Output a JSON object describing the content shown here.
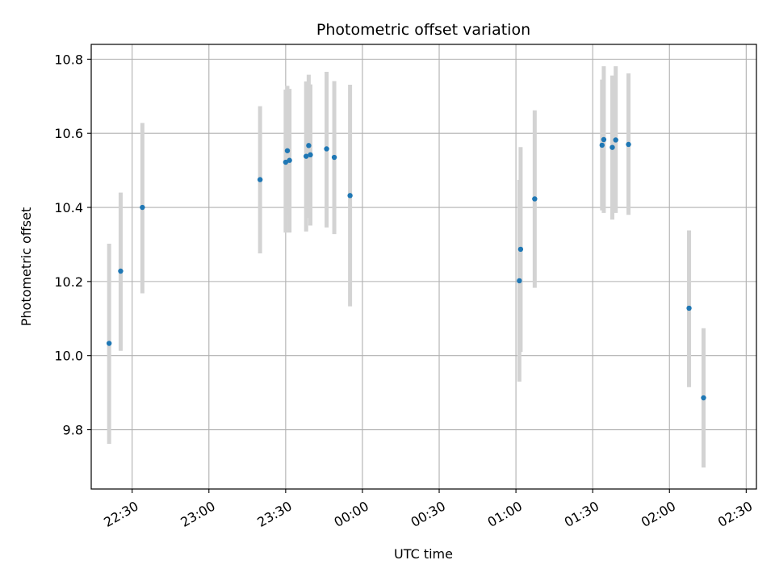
{
  "chart_data": {
    "type": "scatter",
    "title": "Photometric offset variation",
    "xlabel": "UTC time",
    "ylabel": "Photometric offset",
    "xlim": [
      "22:14",
      "02:34"
    ],
    "ylim": [
      9.64,
      10.84
    ],
    "x_ticks": [
      "22:30",
      "23:00",
      "23:30",
      "00:00",
      "00:30",
      "01:00",
      "01:30",
      "02:00",
      "02:30"
    ],
    "y_ticks": [
      9.8,
      10.0,
      10.2,
      10.4,
      10.6,
      10.8
    ],
    "grid": true,
    "colors": {
      "point": "#1f77b4",
      "errorbar": "#d3d3d3",
      "grid": "#b0b0b0"
    },
    "points": [
      {
        "time": "22:21:00",
        "y": 10.033,
        "err_low": 9.762,
        "err_high": 10.302
      },
      {
        "time": "22:25:30",
        "y": 10.228,
        "err_low": 10.013,
        "err_high": 10.44
      },
      {
        "time": "22:34:00",
        "y": 10.4,
        "err_low": 10.168,
        "err_high": 10.628
      },
      {
        "time": "23:20:00",
        "y": 10.475,
        "err_low": 10.276,
        "err_high": 10.673
      },
      {
        "time": "23:30:00",
        "y": 10.522,
        "err_low": 10.332,
        "err_high": 10.718
      },
      {
        "time": "23:30:40",
        "y": 10.553,
        "err_low": 10.378,
        "err_high": 10.728
      },
      {
        "time": "23:31:30",
        "y": 10.527,
        "err_low": 10.332,
        "err_high": 10.72
      },
      {
        "time": "23:38:00",
        "y": 10.538,
        "err_low": 10.335,
        "err_high": 10.74
      },
      {
        "time": "23:39:00",
        "y": 10.567,
        "err_low": 10.372,
        "err_high": 10.758
      },
      {
        "time": "23:39:40",
        "y": 10.542,
        "err_low": 10.351,
        "err_high": 10.732
      },
      {
        "time": "23:46:00",
        "y": 10.558,
        "err_low": 10.346,
        "err_high": 10.766
      },
      {
        "time": "23:49:00",
        "y": 10.535,
        "err_low": 10.328,
        "err_high": 10.741
      },
      {
        "time": "23:55:10",
        "y": 10.432,
        "err_low": 10.133,
        "err_high": 10.731
      },
      {
        "time": "01:01:20",
        "y": 10.202,
        "err_low": 9.93,
        "err_high": 10.474
      },
      {
        "time": "01:01:50",
        "y": 10.287,
        "err_low": 10.01,
        "err_high": 10.563
      },
      {
        "time": "01:07:20",
        "y": 10.423,
        "err_low": 10.183,
        "err_high": 10.662
      },
      {
        "time": "01:33:40",
        "y": 10.568,
        "err_low": 10.392,
        "err_high": 10.745
      },
      {
        "time": "01:34:20",
        "y": 10.583,
        "err_low": 10.385,
        "err_high": 10.781
      },
      {
        "time": "01:37:40",
        "y": 10.562,
        "err_low": 10.367,
        "err_high": 10.756
      },
      {
        "time": "01:39:00",
        "y": 10.582,
        "err_low": 10.385,
        "err_high": 10.781
      },
      {
        "time": "01:44:00",
        "y": 10.57,
        "err_low": 10.38,
        "err_high": 10.762
      },
      {
        "time": "02:07:40",
        "y": 10.128,
        "err_low": 9.915,
        "err_high": 10.338
      },
      {
        "time": "02:13:20",
        "y": 9.886,
        "err_low": 9.698,
        "err_high": 10.074
      }
    ]
  }
}
